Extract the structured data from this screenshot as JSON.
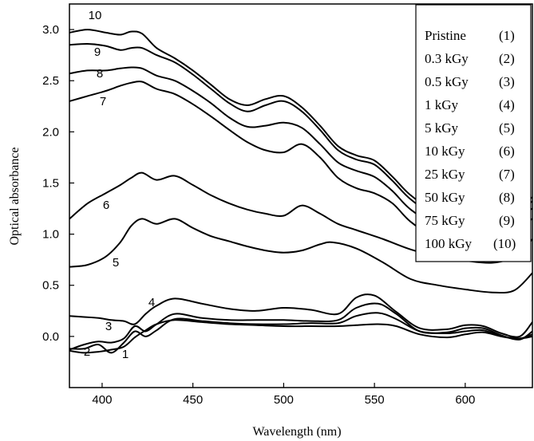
{
  "chart_data": {
    "type": "line",
    "title": "",
    "xlabel": "Wavelength (nm)",
    "ylabel": "Optical absorbance",
    "xlim": [
      382,
      637
    ],
    "ylim": [
      -0.5,
      3.25
    ],
    "xticks": [
      400,
      450,
      500,
      550,
      600
    ],
    "yticks": [
      0.0,
      0.5,
      1.0,
      1.5,
      2.0,
      2.5,
      3.0
    ],
    "xtick_labels": [
      "400",
      "450",
      "500",
      "550",
      "600"
    ],
    "ytick_labels": [
      "0.0",
      "0.5",
      "1.0",
      "1.5",
      "2.0",
      "2.5",
      "3.0"
    ],
    "grid": false,
    "legend_position": "top-right",
    "series": [
      {
        "name": "Pristine",
        "legend_num": "(1)",
        "curve_label": "1",
        "x": [
          382,
          390,
          398,
          405,
          412,
          418,
          424,
          430,
          440,
          455,
          470,
          485,
          500,
          515,
          530,
          540,
          552,
          562,
          575,
          590,
          600,
          610,
          620,
          630,
          637
        ],
        "y": [
          -0.14,
          -0.16,
          -0.15,
          -0.13,
          -0.1,
          -0.01,
          0.06,
          0.12,
          0.16,
          0.14,
          0.12,
          0.11,
          0.1,
          0.1,
          0.1,
          0.11,
          0.12,
          0.1,
          0.02,
          -0.01,
          0.02,
          0.04,
          0.0,
          -0.02,
          0.0
        ]
      },
      {
        "name": "0.3 kGy",
        "legend_num": "(2)",
        "curve_label": "2",
        "x": [
          382,
          390,
          398,
          405,
          412,
          418,
          424,
          430,
          440,
          455,
          470,
          485,
          500,
          515,
          530,
          540,
          552,
          562,
          575,
          590,
          600,
          610,
          620,
          630,
          637
        ],
        "y": [
          -0.12,
          -0.12,
          -0.08,
          -0.16,
          -0.06,
          0.05,
          0.0,
          0.06,
          0.17,
          0.15,
          0.13,
          0.12,
          0.12,
          0.13,
          0.13,
          0.2,
          0.23,
          0.17,
          0.05,
          0.03,
          0.05,
          0.06,
          0.0,
          -0.02,
          0.02
        ]
      },
      {
        "name": "0.5 kGy",
        "legend_num": "(3)",
        "curve_label": "3",
        "x": [
          382,
          390,
          398,
          405,
          412,
          418,
          424,
          430,
          440,
          455,
          470,
          485,
          500,
          515,
          530,
          540,
          552,
          562,
          575,
          590,
          600,
          610,
          620,
          630,
          637
        ],
        "y": [
          -0.13,
          -0.08,
          -0.05,
          -0.06,
          -0.02,
          0.1,
          0.05,
          0.12,
          0.22,
          0.18,
          0.16,
          0.16,
          0.16,
          0.15,
          0.16,
          0.28,
          0.32,
          0.22,
          0.05,
          0.04,
          0.08,
          0.08,
          0.01,
          -0.03,
          0.05
        ]
      },
      {
        "name": "1 kGy",
        "legend_num": "(4)",
        "curve_label": "4",
        "x": [
          382,
          390,
          398,
          405,
          412,
          418,
          424,
          430,
          440,
          455,
          470,
          485,
          500,
          515,
          530,
          540,
          550,
          562,
          575,
          590,
          600,
          610,
          620,
          630,
          637
        ],
        "y": [
          0.2,
          0.19,
          0.18,
          0.16,
          0.15,
          0.12,
          0.22,
          0.3,
          0.37,
          0.32,
          0.27,
          0.25,
          0.28,
          0.26,
          0.22,
          0.38,
          0.4,
          0.24,
          0.08,
          0.07,
          0.11,
          0.1,
          0.03,
          0.0,
          0.14
        ]
      },
      {
        "name": "5 kGy",
        "legend_num": "(5)",
        "curve_label": "5",
        "x": [
          382,
          392,
          402,
          410,
          416,
          422,
          430,
          440,
          450,
          460,
          470,
          480,
          490,
          500,
          510,
          520,
          527,
          540,
          555,
          570,
          585,
          600,
          615,
          627,
          637
        ],
        "y": [
          0.68,
          0.7,
          0.78,
          0.92,
          1.08,
          1.15,
          1.1,
          1.15,
          1.06,
          0.98,
          0.93,
          0.88,
          0.84,
          0.82,
          0.84,
          0.9,
          0.92,
          0.86,
          0.72,
          0.56,
          0.5,
          0.46,
          0.43,
          0.45,
          0.62
        ]
      },
      {
        "name": "10 kGy",
        "legend_num": "(6)",
        "curve_label": "6",
        "x": [
          382,
          392,
          402,
          410,
          416,
          422,
          430,
          440,
          450,
          460,
          470,
          480,
          490,
          500,
          510,
          520,
          530,
          540,
          555,
          570,
          585,
          600,
          615,
          627,
          637
        ],
        "y": [
          1.15,
          1.3,
          1.4,
          1.48,
          1.55,
          1.6,
          1.53,
          1.57,
          1.48,
          1.38,
          1.3,
          1.24,
          1.2,
          1.18,
          1.28,
          1.2,
          1.1,
          1.04,
          0.95,
          0.85,
          0.78,
          0.74,
          0.72,
          0.78,
          0.95
        ]
      },
      {
        "name": "25 kGy",
        "legend_num": "(7)",
        "curve_label": "7",
        "x": [
          382,
          392,
          402,
          410,
          416,
          422,
          430,
          440,
          450,
          460,
          470,
          480,
          490,
          500,
          510,
          520,
          530,
          540,
          550,
          560,
          570,
          585,
          600,
          615,
          637
        ],
        "y": [
          2.3,
          2.35,
          2.4,
          2.45,
          2.48,
          2.49,
          2.42,
          2.37,
          2.27,
          2.15,
          2.02,
          1.9,
          1.82,
          1.8,
          1.88,
          1.75,
          1.55,
          1.45,
          1.4,
          1.3,
          1.12,
          0.95,
          0.9,
          0.93,
          1.15
        ]
      },
      {
        "name": "50 kGy",
        "legend_num": "(8)",
        "curve_label": "8",
        "x": [
          382,
          392,
          402,
          410,
          416,
          422,
          430,
          440,
          450,
          460,
          470,
          480,
          490,
          500,
          510,
          520,
          530,
          540,
          550,
          560,
          570,
          585,
          600,
          615,
          637
        ],
        "y": [
          2.57,
          2.6,
          2.6,
          2.62,
          2.63,
          2.62,
          2.55,
          2.5,
          2.4,
          2.28,
          2.14,
          2.05,
          2.06,
          2.09,
          2.04,
          1.88,
          1.7,
          1.62,
          1.56,
          1.42,
          1.24,
          1.08,
          1.02,
          1.04,
          1.25
        ]
      },
      {
        "name": "75 kGy",
        "legend_num": "(9)",
        "curve_label": "9",
        "x": [
          382,
          392,
          402,
          410,
          416,
          422,
          430,
          440,
          450,
          460,
          470,
          480,
          490,
          500,
          510,
          520,
          530,
          540,
          550,
          560,
          570,
          585,
          600,
          615,
          637
        ],
        "y": [
          2.85,
          2.86,
          2.84,
          2.8,
          2.82,
          2.82,
          2.75,
          2.68,
          2.56,
          2.42,
          2.28,
          2.2,
          2.26,
          2.3,
          2.2,
          2.02,
          1.82,
          1.73,
          1.68,
          1.52,
          1.34,
          1.16,
          1.1,
          1.12,
          1.32
        ]
      },
      {
        "name": "100 kGy",
        "legend_num": "(10)",
        "curve_label": "10",
        "x": [
          382,
          392,
          402,
          410,
          416,
          422,
          430,
          440,
          450,
          460,
          470,
          480,
          490,
          500,
          510,
          520,
          530,
          540,
          550,
          560,
          570,
          585,
          600,
          615,
          637
        ],
        "y": [
          2.97,
          3.0,
          2.97,
          2.95,
          2.98,
          2.96,
          2.82,
          2.72,
          2.6,
          2.46,
          2.32,
          2.26,
          2.32,
          2.35,
          2.24,
          2.06,
          1.86,
          1.77,
          1.72,
          1.56,
          1.38,
          1.2,
          1.14,
          1.16,
          1.36
        ]
      }
    ]
  }
}
